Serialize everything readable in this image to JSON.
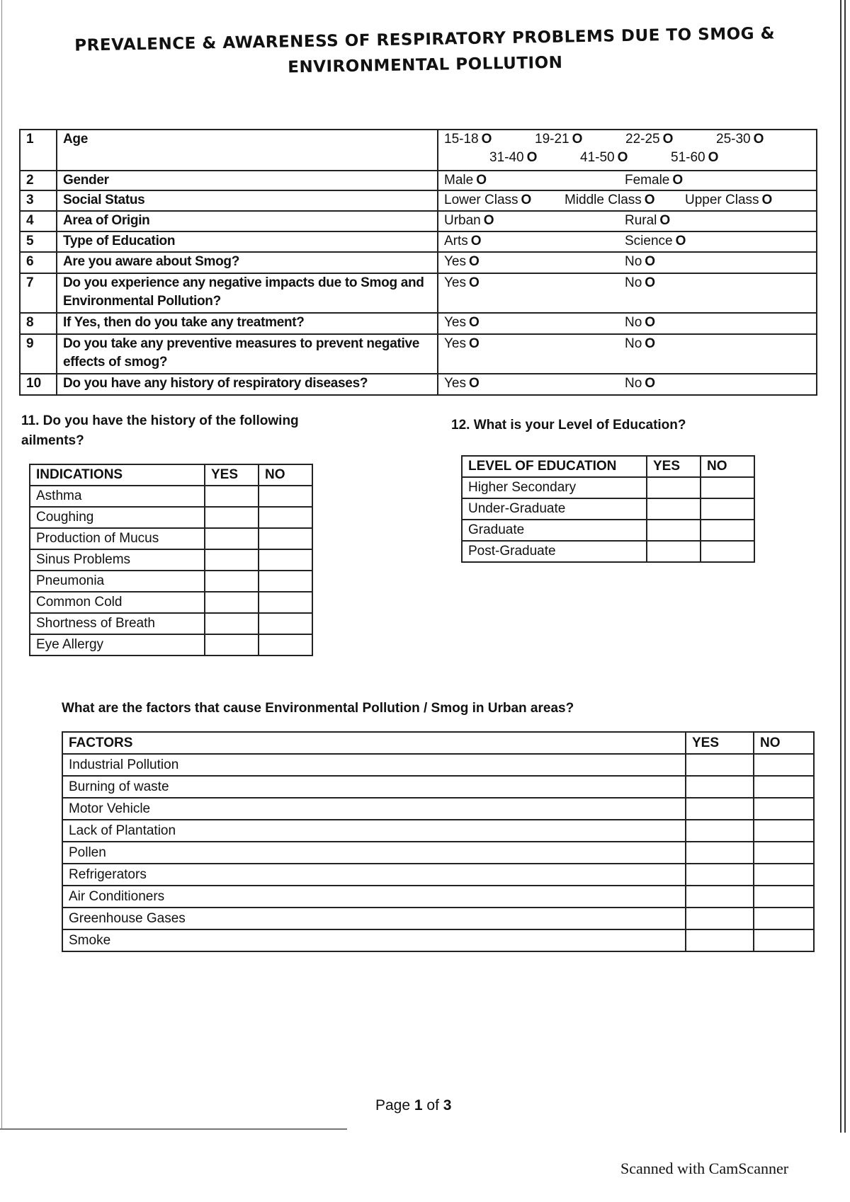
{
  "title": {
    "line1": "PREVALENCE & AWARENESS OF RESPIRATORY PROBLEMS DUE TO SMOG &",
    "line2": "ENVIRONMENTAL POLLUTION"
  },
  "option_marker": "O",
  "questions": [
    {
      "num": "1",
      "text": "Age",
      "options": [
        "15-18",
        "19-21",
        "22-25",
        "25-30",
        "31-40",
        "41-50",
        "51-60"
      ]
    },
    {
      "num": "2",
      "text": "Gender",
      "options": [
        "Male",
        "Female"
      ]
    },
    {
      "num": "3",
      "text": "Social Status",
      "options": [
        "Lower Class",
        "Middle Class",
        "Upper Class"
      ]
    },
    {
      "num": "4",
      "text": "Area of Origin",
      "options": [
        "Urban",
        "Rural"
      ]
    },
    {
      "num": "5",
      "text": "Type of Education",
      "options": [
        "Arts",
        "Science"
      ]
    },
    {
      "num": "6",
      "text": "Are you aware about Smog?",
      "options": [
        "Yes",
        "No"
      ]
    },
    {
      "num": "7",
      "text": "Do you experience any negative impacts due to Smog and Environmental Pollution?",
      "options": [
        "Yes",
        "No"
      ]
    },
    {
      "num": "8",
      "text": "If Yes, then do you take any treatment?",
      "options": [
        "Yes",
        "No"
      ]
    },
    {
      "num": "9",
      "text": "Do you take any preventive measures to prevent negative effects of smog?",
      "options": [
        "Yes",
        "No"
      ]
    },
    {
      "num": "10",
      "text": "Do you have any history of respiratory diseases?",
      "options": [
        "Yes",
        "No"
      ]
    }
  ],
  "ailments": {
    "heading": "11. Do you have the history of the following ailments?",
    "headers": [
      "INDICATIONS",
      "YES",
      "NO"
    ],
    "rows": [
      "Asthma",
      "Coughing",
      "Production of Mucus",
      "Sinus Problems",
      "Pneumonia",
      "Common Cold",
      "Shortness of Breath",
      "Eye Allergy"
    ]
  },
  "education": {
    "heading": "12. What is your Level of Education?",
    "headers": [
      "LEVEL OF EDUCATION",
      "YES",
      "NO"
    ],
    "rows": [
      "Higher Secondary",
      "Under-Graduate",
      "Graduate",
      "Post-Graduate"
    ]
  },
  "factors": {
    "heading": "What are the factors that cause Environmental Pollution / Smog in Urban areas?",
    "headers": [
      "FACTORS",
      "YES",
      "NO"
    ],
    "rows": [
      "Industrial Pollution",
      "Burning of waste",
      "Motor Vehicle",
      "Lack of Plantation",
      "Pollen",
      "Refrigerators",
      "Air Conditioners",
      "Greenhouse Gases",
      "Smoke"
    ]
  },
  "footer": {
    "page_prefix": "Page",
    "page_current": "1",
    "page_of": "of",
    "page_total": "3"
  },
  "watermark": "Scanned with CamScanner"
}
